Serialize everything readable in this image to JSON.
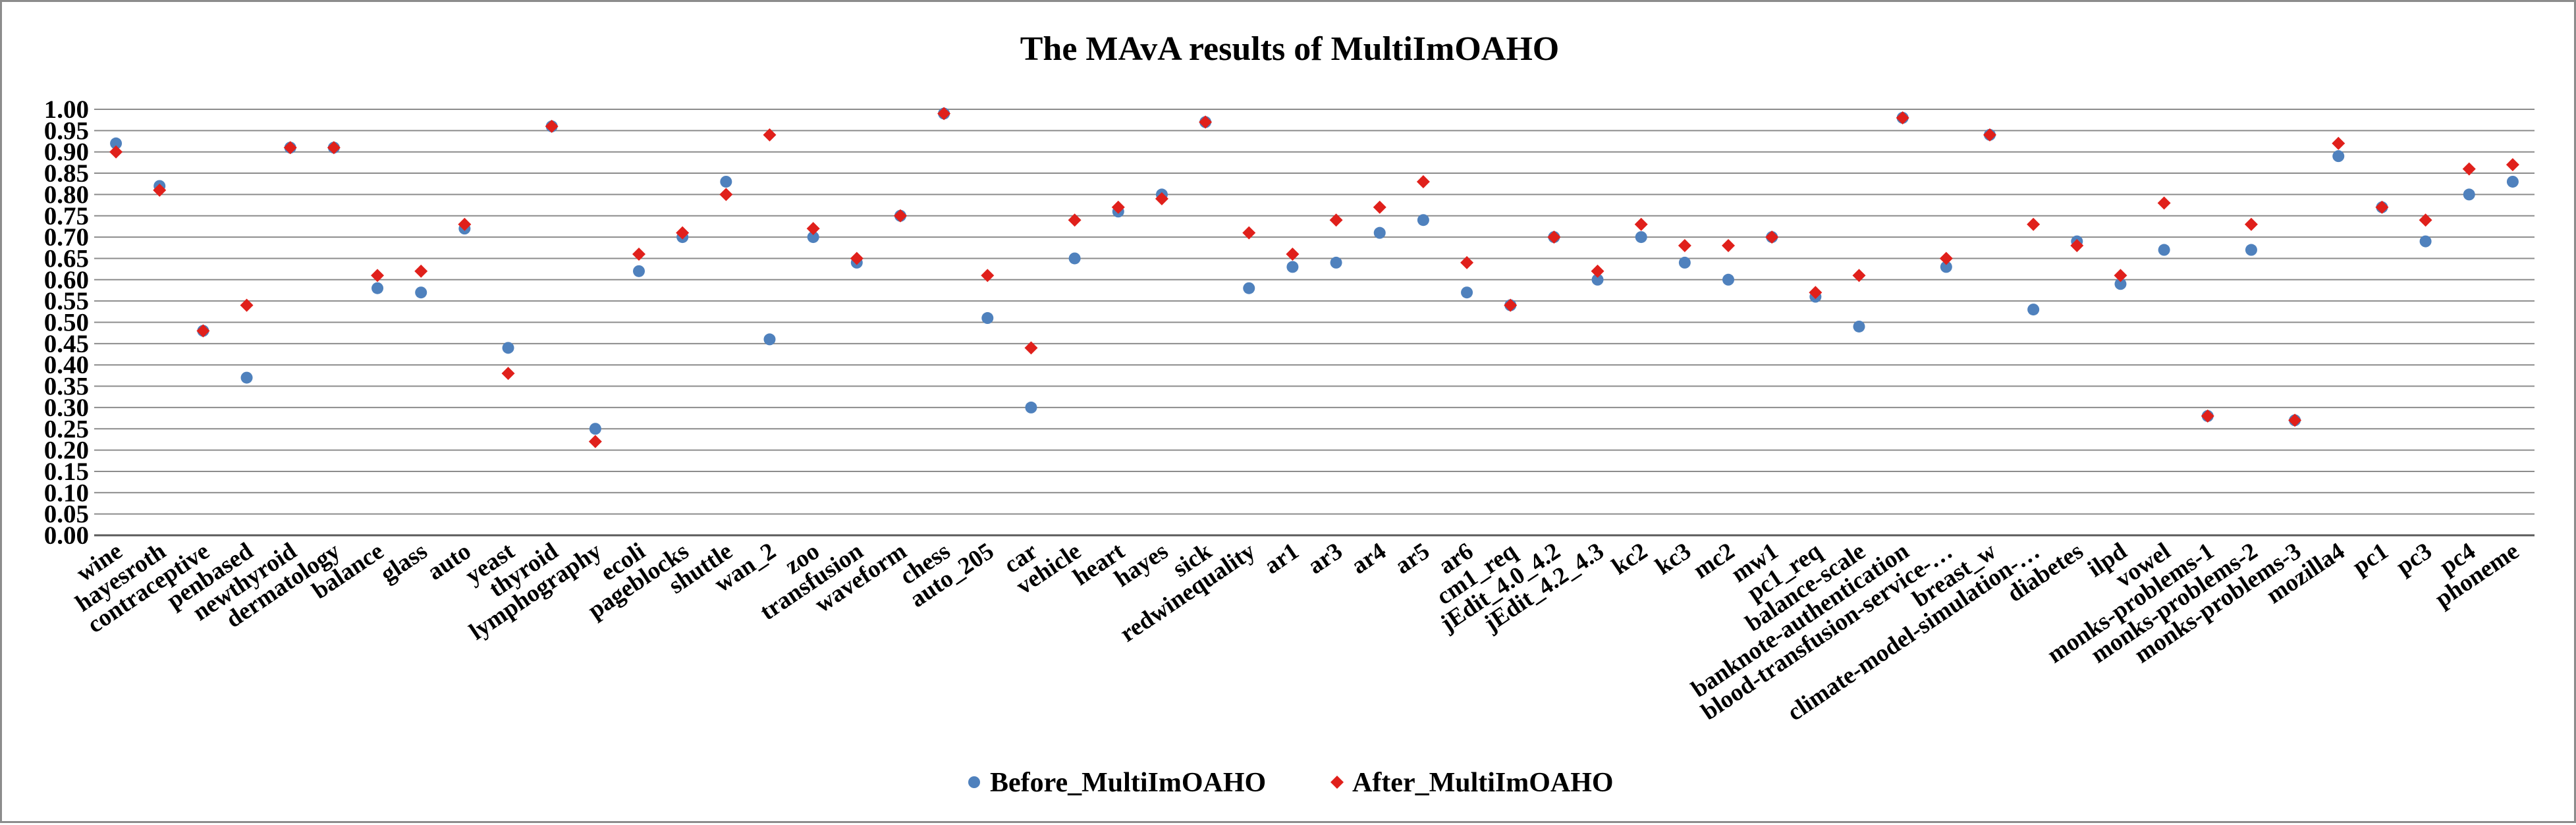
{
  "chart_data": {
    "type": "scatter",
    "title": "The MAvA results of MultiImOAHO",
    "xlabel": "",
    "ylabel": "",
    "ylim": [
      0,
      1
    ],
    "ytick_step": 0.05,
    "yticks": [
      "0.00",
      "0.05",
      "0.10",
      "0.15",
      "0.20",
      "0.25",
      "0.30",
      "0.35",
      "0.40",
      "0.45",
      "0.50",
      "0.55",
      "0.60",
      "0.65",
      "0.70",
      "0.75",
      "0.80",
      "0.85",
      "0.90",
      "0.95",
      "1.00"
    ],
    "grid": true,
    "legend_position": "bottom",
    "categories": [
      "wine",
      "hayesroth",
      "contraceptive",
      "penbased",
      "newthyroid",
      "dermatology",
      "balance",
      "glass",
      "auto",
      "yeast",
      "thyroid",
      "lymphography",
      "ecoli",
      "pageblocks",
      "shuttle",
      "wan_2",
      "zoo",
      "transfusion",
      "waveform",
      "chess",
      "auto_205",
      "car",
      "vehicle",
      "heart",
      "hayes",
      "sick",
      "redwinequality",
      "ar1",
      "ar3",
      "ar4",
      "ar5",
      "ar6",
      "cm1_req",
      "jEdit_4.0_4.2",
      "jEdit_4.2_4.3",
      "kc2",
      "kc3",
      "mc2",
      "mw1",
      "pc1_req",
      "balance-scale",
      "banknote-authentication",
      "blood-transfusion-service-…",
      "breast_w",
      "climate-model-simulation-…",
      "diabetes",
      "ilpd",
      "vowel",
      "monks-problems-1",
      "monks-problems-2",
      "monks-problems-3",
      "mozilla4",
      "pc1",
      "pc3",
      "pc4",
      "phoneme"
    ],
    "series": [
      {
        "name": "Before_MultiImOAHO",
        "color": "#4f81bd",
        "marker": "circle",
        "values": [
          0.92,
          0.82,
          0.48,
          0.37,
          0.91,
          0.91,
          0.58,
          0.57,
          0.72,
          0.44,
          0.96,
          0.25,
          0.62,
          0.7,
          0.83,
          0.46,
          0.7,
          0.64,
          0.75,
          0.99,
          0.51,
          0.3,
          0.65,
          0.76,
          0.8,
          0.97,
          0.58,
          0.63,
          0.64,
          0.71,
          0.74,
          0.57,
          0.54,
          0.7,
          0.6,
          0.7,
          0.64,
          0.6,
          0.7,
          0.56,
          0.49,
          0.98,
          0.63,
          0.94,
          0.53,
          0.69,
          0.59,
          0.67,
          0.28,
          0.67,
          0.27,
          0.89,
          0.77,
          0.69,
          0.8,
          0.83
        ]
      },
      {
        "name": "After_MultiImOAHO",
        "color": "#e0201b",
        "marker": "diamond",
        "values": [
          0.9,
          0.81,
          0.48,
          0.54,
          0.91,
          0.91,
          0.61,
          0.62,
          0.73,
          0.38,
          0.96,
          0.22,
          0.66,
          0.71,
          0.8,
          0.94,
          0.72,
          0.65,
          0.75,
          0.99,
          0.61,
          0.44,
          0.74,
          0.77,
          0.79,
          0.97,
          0.71,
          0.66,
          0.74,
          0.77,
          0.83,
          0.64,
          0.54,
          0.7,
          0.62,
          0.73,
          0.68,
          0.68,
          0.7,
          0.57,
          0.61,
          0.98,
          0.65,
          0.94,
          0.73,
          0.68,
          0.61,
          0.78,
          0.28,
          0.73,
          0.27,
          0.92,
          0.77,
          0.74,
          0.86,
          0.87
        ]
      }
    ]
  }
}
